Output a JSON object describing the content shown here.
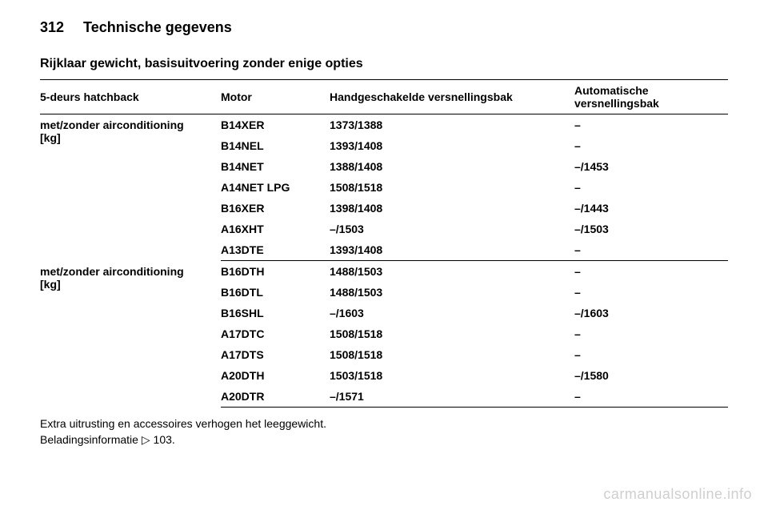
{
  "header": {
    "page_number": "312",
    "chapter": "Technische gegevens"
  },
  "section": {
    "title": "Rijklaar gewicht, basisuitvoering zonder enige opties"
  },
  "table": {
    "columns": {
      "vehicle": "5-deurs hatchback",
      "engine": "Motor",
      "manual": "Handgeschakelde versnellingsbak",
      "automatic": "Automatische versnellingsbak"
    },
    "group1": {
      "label_line1": "met/zonder airconditioning",
      "label_line2": "[kg]",
      "rows": [
        {
          "engine": "B14XER",
          "manual": "1373/1388",
          "auto": "–"
        },
        {
          "engine": "B14NEL",
          "manual": "1393/1408",
          "auto": "–"
        },
        {
          "engine": "B14NET",
          "manual": "1388/1408",
          "auto": "–/1453"
        },
        {
          "engine": "A14NET LPG",
          "manual": "1508/1518",
          "auto": "–"
        },
        {
          "engine": "B16XER",
          "manual": "1398/1408",
          "auto": "–/1443"
        },
        {
          "engine": "A16XHT",
          "manual": "–/1503",
          "auto": "–/1503"
        },
        {
          "engine": "A13DTE",
          "manual": "1393/1408",
          "auto": "–"
        }
      ]
    },
    "group2": {
      "label_line1": "met/zonder airconditioning",
      "label_line2": "[kg]",
      "rows": [
        {
          "engine": "B16DTH",
          "manual": "1488/1503",
          "auto": "–"
        },
        {
          "engine": "B16DTL",
          "manual": "1488/1503",
          "auto": "–"
        },
        {
          "engine": "B16SHL",
          "manual": "–/1603",
          "auto": "–/1603"
        },
        {
          "engine": "A17DTC",
          "manual": "1508/1518",
          "auto": "–"
        },
        {
          "engine": "A17DTS",
          "manual": "1508/1518",
          "auto": "–"
        },
        {
          "engine": "A20DTH",
          "manual": "1503/1518",
          "auto": "–/1580"
        },
        {
          "engine": "A20DTR",
          "manual": "–/1571",
          "auto": "–"
        }
      ]
    }
  },
  "footnotes": {
    "line1": "Extra uitrusting en accessoires verhogen het leeggewicht.",
    "line2_prefix": "Beladingsinformatie ",
    "line2_ref": "103."
  },
  "watermark": "carmanualsonline.info",
  "colors": {
    "text": "#000000",
    "background": "#ffffff",
    "watermark": "#cfcfcf",
    "rule": "#000000"
  }
}
